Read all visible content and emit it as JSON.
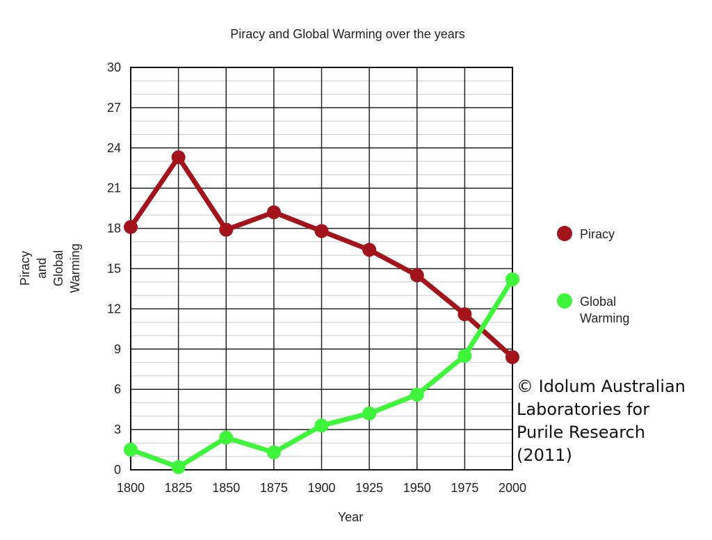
{
  "chart_data": {
    "type": "line",
    "title": "Piracy and Global Warming over the years",
    "xlabel": "Year",
    "ylabel_lines": [
      "Piracy",
      "and",
      "Global",
      "Warming"
    ],
    "categories": [
      "1800",
      "1825",
      "1850",
      "1875",
      "1900",
      "1925",
      "1950",
      "1975",
      "2000"
    ],
    "ylim": [
      0,
      30
    ],
    "ytick_labels": [
      "0",
      "3",
      "6",
      "9",
      "12",
      "15",
      "18",
      "21",
      "24",
      "27",
      "30"
    ],
    "grid": true,
    "legend_position": "right",
    "series": [
      {
        "name": "Piracy",
        "color": "#a3131b",
        "values": [
          18.1,
          23.3,
          17.9,
          19.2,
          17.8,
          16.4,
          14.5,
          11.6,
          8.4
        ]
      },
      {
        "name": "Global Warming",
        "name_lines": [
          "Global",
          "Warming"
        ],
        "color": "#3ef53c",
        "values": [
          1.5,
          0.2,
          2.4,
          1.3,
          3.3,
          4.2,
          5.6,
          8.5,
          14.2
        ]
      }
    ]
  },
  "copyright": {
    "lines": [
      "© Idolum Australian",
      "Laboratories for",
      "Purile Research",
      "(2011)"
    ]
  }
}
